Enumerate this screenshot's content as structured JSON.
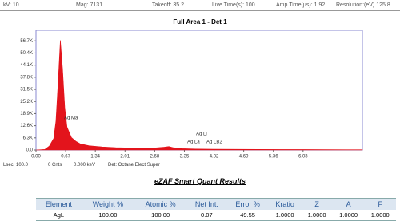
{
  "header": {
    "fields": [
      {
        "label": "kV:",
        "value": "10"
      },
      {
        "label": "Mag:",
        "value": "7131"
      },
      {
        "label": "Takeoff:",
        "value": "35.2"
      },
      {
        "label": "Live Time(s):",
        "value": "100"
      },
      {
        "label": "Amp Time(µs):",
        "value": "1.92"
      },
      {
        "label": "Resolution:(eV)",
        "value": "125.8"
      }
    ]
  },
  "chart_data": {
    "type": "area",
    "title": "Full Area 1 - Det 1",
    "x": [
      0,
      0.2,
      0.3,
      0.4,
      0.45,
      0.5,
      0.55,
      0.6,
      0.65,
      0.7,
      0.8,
      0.9,
      1.0,
      1.2,
      1.5,
      1.8,
      2.2,
      2.6,
      2.9,
      3.0,
      3.1,
      3.3,
      3.6,
      4.0,
      4.5,
      5.0,
      5.5,
      6.0,
      6.5,
      7.0,
      7.37
    ],
    "values": [
      0,
      300,
      2000,
      6000,
      15000,
      35000,
      57000,
      42000,
      22000,
      12000,
      6500,
      4500,
      3200,
      2200,
      1600,
      1200,
      1000,
      900,
      1500,
      1800,
      1200,
      700,
      500,
      400,
      350,
      300,
      260,
      220,
      190,
      160,
      150
    ],
    "color": "#e3141c",
    "xlim": [
      0,
      7.37
    ],
    "ylim": [
      0,
      62200
    ],
    "xticks": [
      {
        "value": 0,
        "label": "0.00"
      },
      0.67,
      1.34,
      2.01,
      2.68,
      3.35,
      4.02,
      4.69,
      5.36,
      6.03
    ],
    "yticks": [
      {
        "value": 0,
        "label": "0.0"
      },
      {
        "value": 6300,
        "label": "6.3K"
      },
      {
        "value": 12600,
        "label": "12.6K"
      },
      {
        "value": 18900,
        "label": "18.9K"
      },
      {
        "value": 25200,
        "label": "25.2K"
      },
      {
        "value": 31500,
        "label": "31.5K"
      },
      {
        "value": 37800,
        "label": "37.8K"
      },
      {
        "value": 44100,
        "label": "44.1K"
      },
      {
        "value": 50400,
        "label": "50.4K"
      },
      {
        "value": 56700,
        "label": "56.7K"
      }
    ],
    "annotations": [
      "Ag Ma",
      "Ag Ll",
      "Ag La",
      "Ag LB2"
    ]
  },
  "status": [
    "Lsec: 100.0",
    "0 Cnts",
    "0.000 keV",
    "Det: Octane Elect Super"
  ],
  "results": {
    "title": "eZAF Smart Quant Results",
    "columns": [
      "Element",
      "Weight %",
      "Atomic %",
      "Net Int.",
      "Error %",
      "Kratio",
      "Z",
      "A",
      "F"
    ],
    "rows": [
      [
        "AgL",
        "100.00",
        "100.00",
        "0.07",
        "49.55",
        "1.0000",
        "1.0000",
        "1.0000",
        "1.0000"
      ]
    ]
  }
}
